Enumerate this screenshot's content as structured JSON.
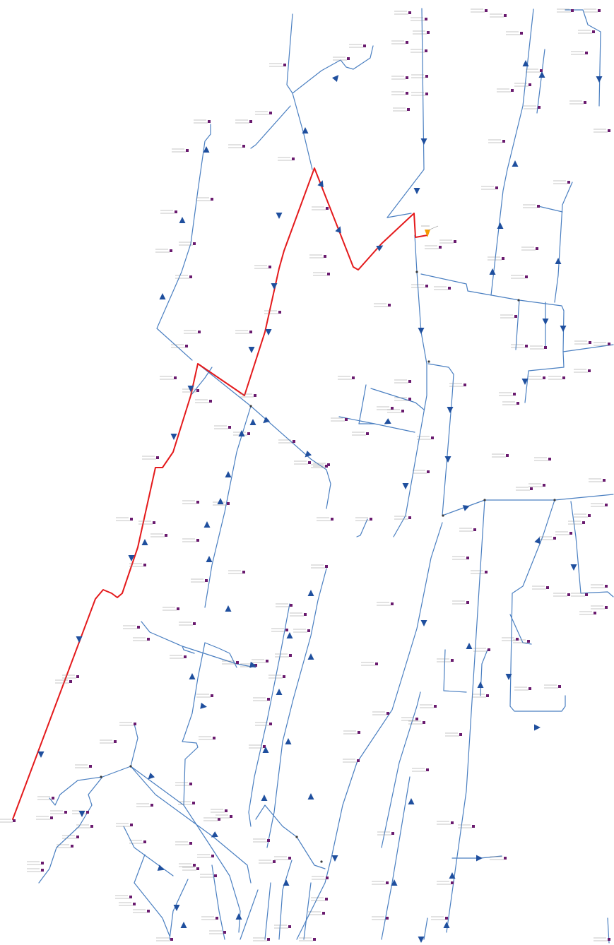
{
  "colors": {
    "background": "#ffffff",
    "network_line": "#4a7fc1",
    "highlighted_path": "#e41a1c",
    "flow_arrow": "#1f4f9e",
    "terminal_marker": "#6a1b6f",
    "source_marker": "#f59b00"
  },
  "icons": {
    "flow_arrow": "triangle-arrow-icon",
    "terminal": "terminal-node-icon",
    "source": "source-node-icon"
  },
  "legend": {}
}
